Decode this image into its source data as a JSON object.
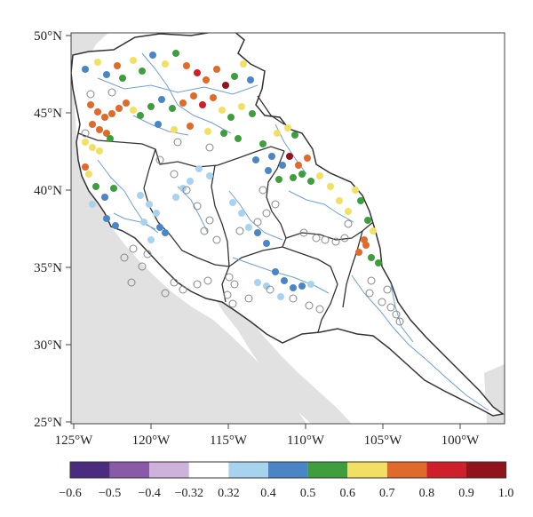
{
  "map": {
    "lat_labels": [
      "50°N",
      "45°N",
      "40°N",
      "35°N",
      "30°N",
      "25°N"
    ],
    "lon_labels": [
      "125°W",
      "120°W",
      "115°W",
      "110°W",
      "105°W",
      "100°W"
    ]
  },
  "legend": {
    "tick_labels": [
      "−0.6",
      "−0.5",
      "−0.4",
      "−0.32",
      "0.32",
      "0.4",
      "0.5",
      "0.6",
      "0.7",
      "0.8",
      "0.9",
      "1.0"
    ],
    "colors": [
      "#4b2b7f",
      "#8a5aa8",
      "#cdb3db",
      "#ffffff",
      "#a7d3ee",
      "#4a86c5",
      "#3e9e3e",
      "#f2e063",
      "#e06a2a",
      "#cf1f2a",
      "#8f141c"
    ],
    "hollow_marker_color": "#888888",
    "land_color": "#ffffff",
    "ocean_shading_color": "#e1e1e1",
    "river_color": "#6f9fd8",
    "boundary_color": "#333333"
  }
}
